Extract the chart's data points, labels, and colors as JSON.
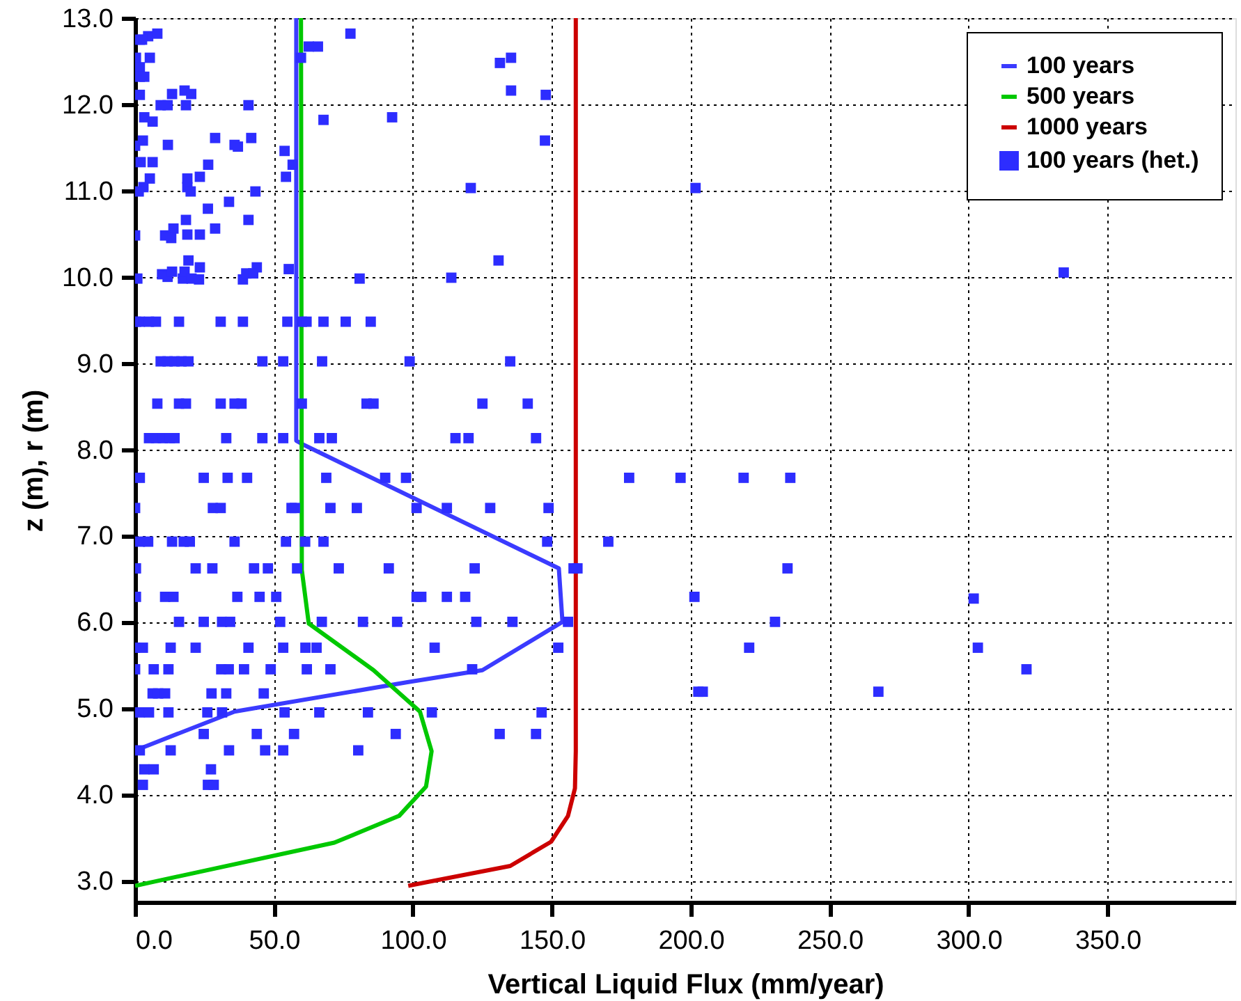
{
  "chart_data": {
    "type": "line",
    "xlabel": "Vertical Liquid Flux (mm/year)",
    "ylabel": "z  (m),  r (m)",
    "xlim": [
      0,
      396
    ],
    "ylim": [
      2.75,
      13
    ],
    "xticks": [
      {
        "value": 0,
        "label": "0.0"
      },
      {
        "value": 50,
        "label": "50.0"
      },
      {
        "value": 100,
        "label": "100.0"
      },
      {
        "value": 150,
        "label": "150.0"
      },
      {
        "value": 200,
        "label": "200.0"
      },
      {
        "value": 250,
        "label": "250.0"
      },
      {
        "value": 300,
        "label": "300.0"
      },
      {
        "value": 350,
        "label": "350.0"
      }
    ],
    "yticks": [
      {
        "value": 3,
        "label": "3.0"
      },
      {
        "value": 4,
        "label": "4.0"
      },
      {
        "value": 5,
        "label": "5.0"
      },
      {
        "value": 6,
        "label": "6.0"
      },
      {
        "value": 7,
        "label": "7.0"
      },
      {
        "value": 8,
        "label": "8.0"
      },
      {
        "value": 9,
        "label": "9.0"
      },
      {
        "value": 10,
        "label": "10.0"
      },
      {
        "value": 11,
        "label": "11.0"
      },
      {
        "value": 12,
        "label": "12.0"
      },
      {
        "value": 13,
        "label": "13.0"
      }
    ],
    "grid": true,
    "legend": "top right",
    "series": [
      {
        "name": "100 years",
        "marker": "none",
        "color": "#3b3bff",
        "x": [
          58,
          58,
          60.8,
          152.5,
          153.8,
          125,
          98,
          35.8,
          1.7,
          0
        ],
        "values": [
          13,
          8.1,
          8.05,
          6.62,
          6.0,
          5.44,
          5.3,
          4.96,
          4.53,
          4.5
        ]
      },
      {
        "name": "500 years",
        "marker": "none",
        "color": "#00c800",
        "x": [
          59.7,
          60,
          62.5,
          85.8,
          102.5,
          106.7,
          104.7,
          95,
          71.7,
          0
        ],
        "values": [
          13,
          6.6,
          5.98,
          5.44,
          4.96,
          4.5,
          4.09,
          3.75,
          3.44,
          2.94
        ]
      },
      {
        "name": "1000 years",
        "marker": "none",
        "color": "#cc0000",
        "x": [
          158.6,
          158.6,
          158.3,
          155.8,
          149.7,
          135,
          98.3
        ],
        "values": [
          13,
          4.5,
          4.07,
          3.75,
          3.45,
          3.17,
          2.94
        ]
      },
      {
        "name": "100 years (het.)",
        "type": "scatter",
        "marker": "square",
        "color": "#2d2dff",
        "x": [
          1.7,
          4.7,
          8,
          77.5,
          2.5,
          62.5,
          65.8,
          0.3,
          5.3,
          59.7,
          135.3,
          131.3,
          1.7,
          1.7,
          3.3,
          135.3,
          13.3,
          17.8,
          20.2,
          147.8,
          1.7,
          9.2,
          11.7,
          18.3,
          40.8,
          3.3,
          6.3,
          67.8,
          92.5,
          0,
          2.8,
          11.8,
          28.8,
          35.8,
          37,
          41.8,
          53.8,
          147.5,
          2,
          6.3,
          26.3,
          56.7,
          5.3,
          18.8,
          23.3,
          54.3,
          3,
          1.3,
          18.8,
          20,
          43.3,
          120.8,
          33.8,
          26.2,
          18.3,
          40.8,
          28.8,
          13.8,
          0,
          10.8,
          13,
          18.8,
          23.3,
          19.2,
          23.3,
          43.8,
          55.3,
          130.8,
          0.8,
          9.7,
          11.7,
          13.3,
          17.2,
          17.8,
          20.3,
          23,
          38.8,
          40,
          42.5,
          80.8,
          113.8,
          0.3,
          1.7,
          5,
          7.5,
          15.8,
          30.8,
          38.8,
          54.8,
          60,
          61.7,
          67.8,
          75.8,
          84.8,
          9.2,
          11.7,
          14.2,
          16.7,
          19.2,
          45.8,
          53.3,
          67.3,
          98.8,
          135,
          8,
          15.8,
          18.3,
          30.8,
          35.8,
          38.3,
          60,
          83.3,
          85.8,
          125,
          141.3,
          5,
          7.5,
          10,
          12.5,
          14.2,
          32.8,
          45.8,
          53.3,
          66.3,
          70.8,
          115.3,
          120,
          144.3,
          1.7,
          24.7,
          33.3,
          40.3,
          68.8,
          90,
          97.5,
          177.8,
          196.3,
          219,
          235.8,
          0,
          28,
          30.8,
          56.3,
          57.5,
          70.3,
          79.8,
          101.3,
          112.2,
          127.8,
          148.8,
          1.7,
          4.7,
          13.3,
          17.5,
          19.7,
          35.8,
          54.3,
          61.2,
          67.8,
          148.3,
          170.3,
          0.3,
          21.8,
          27.8,
          42.8,
          47.8,
          58.3,
          73.3,
          91.3,
          122.2,
          157.8,
          159.2,
          234.8,
          0.3,
          10.8,
          13.8,
          36.8,
          44.8,
          50.8,
          101.3,
          103,
          112.2,
          118.8,
          201.3,
          301.8,
          15.8,
          24.7,
          31.3,
          34.2,
          52.2,
          67.2,
          82,
          94.3,
          122.8,
          135.8,
          155.8,
          230.3,
          0,
          2.8,
          12.8,
          21.8,
          40.8,
          53.3,
          61.3,
          65.3,
          107.8,
          152.3,
          221,
          303.3,
          0,
          6.7,
          12,
          31,
          33.7,
          39.2,
          48.8,
          61.8,
          70.3,
          121.3,
          320.8,
          6.3,
          8.3,
          10.8,
          27.5,
          32.8,
          46.3,
          202.7,
          204.3,
          267.5,
          1.7,
          5,
          12,
          26,
          31.3,
          53.8,
          66.3,
          83.8,
          106.8,
          146.3,
          24.7,
          43.8,
          57.2,
          93.8,
          131.2,
          144.3,
          1.7,
          12.8,
          33.8,
          46.8,
          53.3,
          80.3,
          3.3,
          6.7,
          27.3,
          2.8,
          26.2,
          28.3,
          201.7,
          334.2
        ],
        "values": [
          12.75,
          12.79,
          12.82,
          12.82,
          12.75,
          12.67,
          12.67,
          12.54,
          12.54,
          12.54,
          12.54,
          12.48,
          12.43,
          12.32,
          12.32,
          12.16,
          12.12,
          12.16,
          12.12,
          12.11,
          12.11,
          11.99,
          11.99,
          11.99,
          11.99,
          11.85,
          11.8,
          11.82,
          11.85,
          11.52,
          11.58,
          11.53,
          11.61,
          11.53,
          11.51,
          11.61,
          11.46,
          11.58,
          11.33,
          11.33,
          11.3,
          11.3,
          11.14,
          11.14,
          11.16,
          11.16,
          11.04,
          10.99,
          11.04,
          10.99,
          10.99,
          11.03,
          10.87,
          10.79,
          10.66,
          10.66,
          10.56,
          10.56,
          10.48,
          10.48,
          10.45,
          10.49,
          10.49,
          10.19,
          10.11,
          10.11,
          10.09,
          10.19,
          9.98,
          10.03,
          10,
          10.06,
          9.98,
          10.06,
          9.98,
          9.97,
          9.97,
          10.04,
          10.04,
          9.98,
          9.99,
          9.48,
          9.48,
          9.48,
          9.48,
          9.48,
          9.48,
          9.48,
          9.48,
          9.48,
          9.48,
          9.48,
          9.48,
          9.48,
          9.02,
          9.02,
          9.02,
          9.02,
          9.02,
          9.02,
          9.02,
          9.02,
          9.02,
          9.02,
          8.53,
          8.53,
          8.53,
          8.53,
          8.53,
          8.53,
          8.53,
          8.53,
          8.53,
          8.53,
          8.53,
          8.13,
          8.13,
          8.13,
          8.13,
          8.13,
          8.13,
          8.13,
          8.13,
          8.13,
          8.13,
          8.13,
          8.13,
          8.13,
          7.67,
          7.67,
          7.67,
          7.67,
          7.67,
          7.67,
          7.67,
          7.67,
          7.67,
          7.67,
          7.67,
          7.32,
          7.32,
          7.32,
          7.32,
          7.32,
          7.32,
          7.32,
          7.32,
          7.32,
          7.32,
          7.32,
          6.93,
          6.93,
          6.93,
          6.93,
          6.93,
          6.93,
          6.93,
          6.93,
          6.93,
          6.93,
          6.93,
          6.62,
          6.62,
          6.62,
          6.62,
          6.62,
          6.62,
          6.62,
          6.62,
          6.62,
          6.62,
          6.62,
          6.62,
          6.29,
          6.29,
          6.29,
          6.29,
          6.29,
          6.29,
          6.29,
          6.29,
          6.29,
          6.29,
          6.29,
          6.27,
          6,
          6,
          6,
          6,
          6,
          6,
          6,
          6,
          6,
          6,
          6,
          6,
          5.7,
          5.7,
          5.7,
          5.7,
          5.7,
          5.7,
          5.7,
          5.7,
          5.7,
          5.7,
          5.7,
          5.7,
          5.45,
          5.45,
          5.45,
          5.45,
          5.45,
          5.45,
          5.45,
          5.45,
          5.45,
          5.45,
          5.45,
          5.17,
          5.17,
          5.17,
          5.17,
          5.17,
          5.17,
          5.19,
          5.19,
          5.19,
          4.95,
          4.95,
          4.95,
          4.95,
          4.95,
          4.95,
          4.95,
          4.95,
          4.95,
          4.95,
          4.7,
          4.7,
          4.7,
          4.7,
          4.7,
          4.7,
          4.51,
          4.51,
          4.51,
          4.51,
          4.51,
          4.51,
          4.29,
          4.29,
          4.29,
          4.11,
          4.11,
          4.11,
          11.03,
          10.05
        ]
      }
    ]
  }
}
